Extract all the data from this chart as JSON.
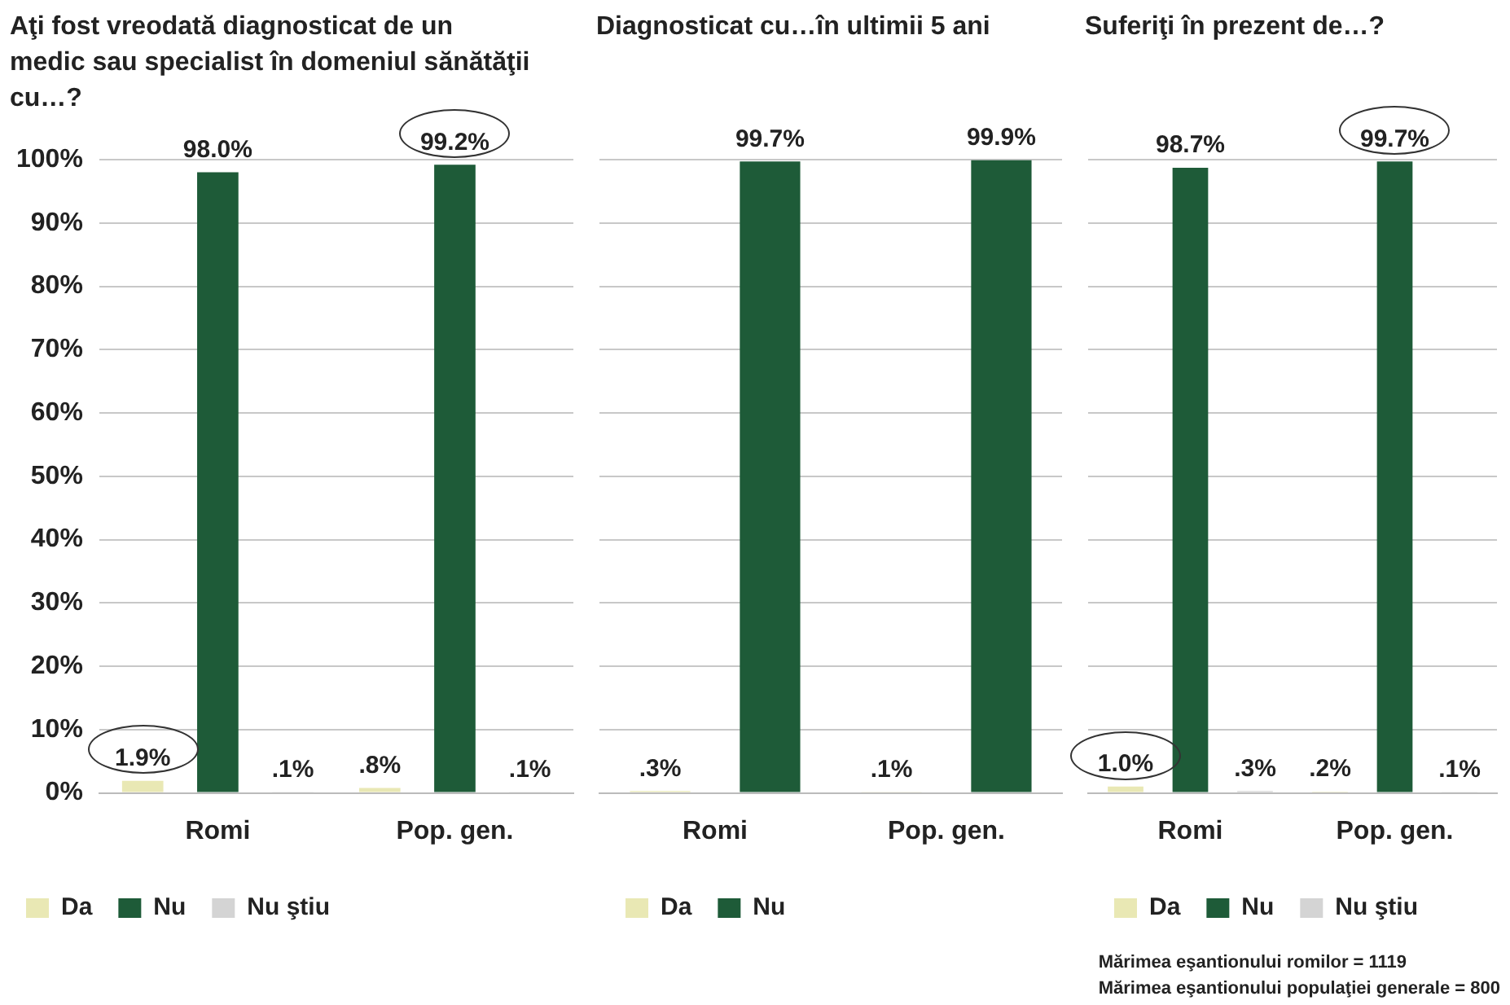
{
  "chart_data": [
    {
      "type": "bar",
      "title": "Aţi fost vreodată diagnosticat de un medic sau specialist în domeniul sănătăţii cu…?",
      "categories": [
        "Romi",
        "Pop. gen."
      ],
      "series": [
        {
          "name": "Da",
          "color": "#e9e8b4",
          "values": [
            1.9,
            0.8
          ],
          "value_labels": [
            "1.9%",
            ".8%"
          ]
        },
        {
          "name": "Nu",
          "color": "#1e5b38",
          "values": [
            98.0,
            99.2
          ],
          "value_labels": [
            "98.0%",
            "99.2%"
          ]
        },
        {
          "name": "Nu ştiu",
          "color": "#d4d4d4",
          "values": [
            0.1,
            0.1
          ],
          "value_labels": [
            ".1%",
            ".1%"
          ]
        }
      ],
      "ylim": [
        0,
        100
      ],
      "yticks": [
        {
          "value": 0,
          "label": "0%"
        },
        {
          "value": 10,
          "label": "10%"
        },
        {
          "value": 20,
          "label": "20%"
        },
        {
          "value": 30,
          "label": "30%"
        },
        {
          "value": 40,
          "label": "40%"
        },
        {
          "value": 50,
          "label": "50%"
        },
        {
          "value": 60,
          "label": "60%"
        },
        {
          "value": 70,
          "label": "70%"
        },
        {
          "value": 80,
          "label": "80%"
        },
        {
          "value": 90,
          "label": "90%"
        },
        {
          "value": 100,
          "label": "100%"
        }
      ],
      "grid": "y",
      "legend": "bottom"
    },
    {
      "type": "bar",
      "title": "Diagnosticat cu…în ultimii 5 ani",
      "categories": [
        "Romi",
        "Pop. gen."
      ],
      "series": [
        {
          "name": "Da",
          "color": "#e9e8b4",
          "values": [
            0.3,
            0.1
          ],
          "value_labels": [
            ".3%",
            ".1%"
          ]
        },
        {
          "name": "Nu",
          "color": "#1e5b38",
          "values": [
            99.7,
            99.9
          ],
          "value_labels": [
            "99.7%",
            "99.9%"
          ]
        }
      ],
      "ylim": [
        0,
        100
      ],
      "yticks": [
        0,
        10,
        20,
        30,
        40,
        50,
        60,
        70,
        80,
        90,
        100
      ],
      "tick_labels": "x",
      "grid": "y",
      "legend": "bottom"
    },
    {
      "type": "bar",
      "title": "Suferiţi în prezent de…?",
      "categories": [
        "Romi",
        "Pop. gen."
      ],
      "series": [
        {
          "name": "Da",
          "color": "#e9e8b4",
          "values": [
            1.0,
            0.2
          ],
          "value_labels": [
            "1.0%",
            ".2%"
          ]
        },
        {
          "name": "Nu",
          "color": "#1e5b38",
          "values": [
            98.7,
            99.7
          ],
          "value_labels": [
            "98.7%",
            "99.7%"
          ]
        },
        {
          "name": "Nu ştiu",
          "color": "#d4d4d4",
          "values": [
            0.3,
            0.1
          ],
          "value_labels": [
            ".3%",
            ".1%"
          ]
        }
      ],
      "ylim": [
        0,
        100
      ],
      "yticks": [
        0,
        10,
        20,
        30,
        40,
        50,
        60,
        70,
        80,
        90,
        100
      ],
      "tick_labels": "x",
      "grid": "y",
      "legend": "bottom",
      "annotations": [
        "Mărimea eşantionului romilor = 1119",
        "Mărimea eşantionului populaţiei generale = 800"
      ]
    }
  ]
}
